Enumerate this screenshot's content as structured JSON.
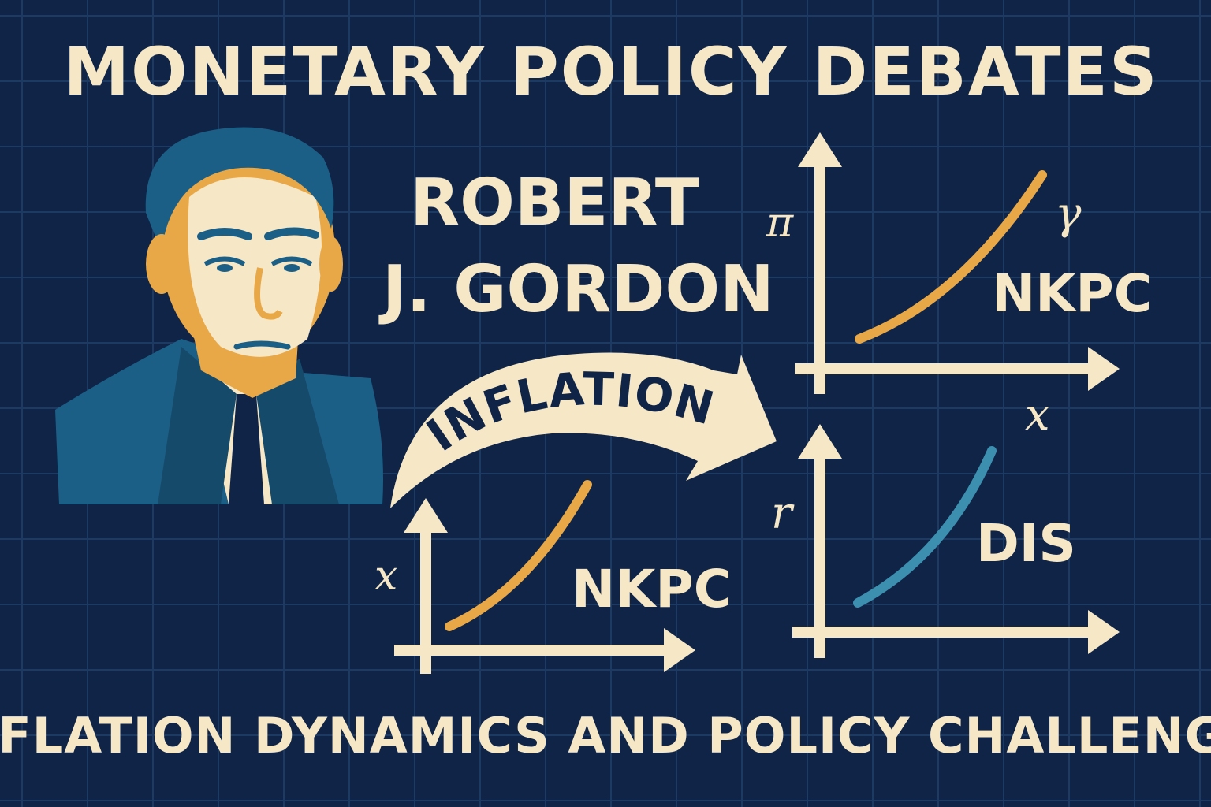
{
  "title": "MONETARY POLICY DEBATES",
  "name_line1": "ROBERT",
  "name_line2": "J. GORDON",
  "arrow_label": "INFLATION",
  "subtitle": "INFLATION DYNAMICS AND POLICY CHALLENGES",
  "graphs": {
    "top_right": {
      "y_axis": "π",
      "x_axis": "x",
      "curve_tag": "γ",
      "curve_label": "NKPC",
      "curve_color": "#e8a848"
    },
    "bottom_left": {
      "y_axis": "x",
      "curve_label": "NKPC",
      "curve_color": "#e8a848"
    },
    "bottom_right": {
      "y_axis": "r",
      "curve_label": "DIS",
      "curve_color": "#3d8fb0"
    }
  },
  "colors": {
    "background": "#0f2447",
    "grid": "#1d3a63",
    "text": "#f6e7c6",
    "portrait_blue": "#1c5f86",
    "portrait_orange": "#e8a848"
  },
  "portrait": "economist-portrait"
}
